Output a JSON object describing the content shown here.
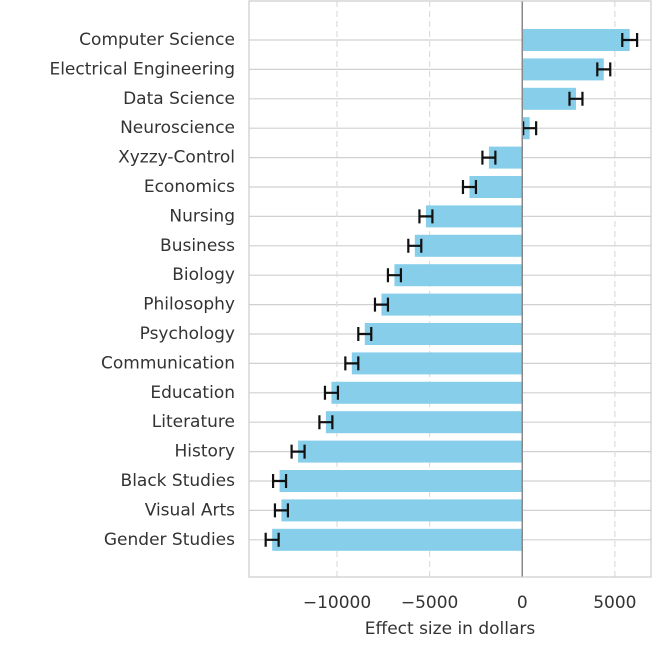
{
  "chart_data": {
    "type": "barh",
    "xlabel": "Effect size in dollars",
    "categories": [
      "Computer Science",
      "Electrical Engineering",
      "Data Science",
      "Neuroscience",
      "Xyzzy-Control",
      "Economics",
      "Nursing",
      "Business",
      "Biology",
      "Philosophy",
      "Psychology",
      "Communication",
      "Education",
      "Literature",
      "History",
      "Black Studies",
      "Visual Arts",
      "Gender Studies"
    ],
    "values": [
      5800,
      4400,
      2900,
      400,
      -1800,
      -2850,
      -5200,
      -5800,
      -6900,
      -7600,
      -8500,
      -9200,
      -10300,
      -10600,
      -12100,
      -13100,
      -13000,
      -13500
    ],
    "errors": [
      400,
      350,
      350,
      350,
      350,
      350,
      350,
      350,
      350,
      350,
      350,
      350,
      350,
      350,
      350,
      350,
      350,
      350
    ],
    "color": "#87ceeb",
    "xlim": [
      -14750,
      6950
    ],
    "xticks": [
      {
        "value": -10000,
        "label": "−10000"
      },
      {
        "value": -5000,
        "label": "−5000"
      },
      0,
      5000
    ],
    "grid": true
  }
}
